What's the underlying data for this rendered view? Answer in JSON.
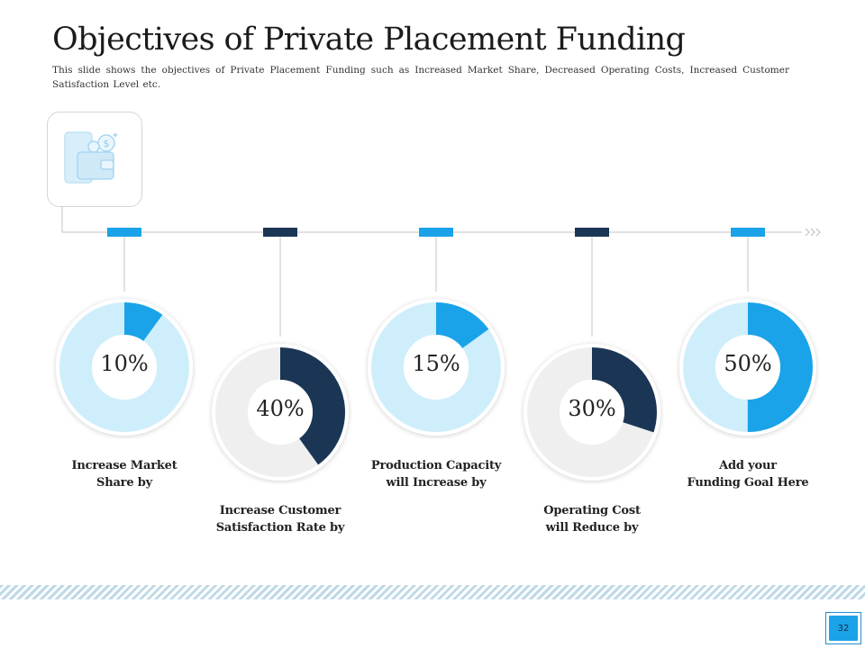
{
  "slide": {
    "title": "Objectives of Private Placement Funding",
    "subtitle": "This slide shows the objectives of Private Placement Funding such as Increased Market Share, Decreased Operating Costs, Increased Customer Satisfaction Level etc.",
    "page_number": "32",
    "icon": "wallet-phone-money-icon"
  },
  "chart_data": {
    "type": "donut",
    "items": [
      {
        "percent_label": "10%",
        "value": 10,
        "label_lines": [
          "Increase Market",
          "Share by"
        ],
        "color": "#1aa3e8",
        "track_color": "#cfeefb",
        "marker_color": "#1aa3e8"
      },
      {
        "percent_label": "40%",
        "value": 40,
        "label_lines": [
          "Increase Customer",
          "Satisfaction Rate by"
        ],
        "color": "#1b3655",
        "track_color": "#efefef",
        "marker_color": "#1b3655"
      },
      {
        "percent_label": "15%",
        "value": 15,
        "label_lines": [
          "Production Capacity",
          "will Increase by"
        ],
        "color": "#1aa3e8",
        "track_color": "#cfeefb",
        "marker_color": "#1aa3e8"
      },
      {
        "percent_label": "30%",
        "value": 30,
        "label_lines": [
          "Operating Cost",
          "will Reduce by"
        ],
        "color": "#1b3655",
        "track_color": "#efefef",
        "marker_color": "#1b3655"
      },
      {
        "percent_label": "50%",
        "value": 50,
        "label_lines": [
          "Add your",
          "Funding Goal Here"
        ],
        "color": "#1aa3e8",
        "track_color": "#cfeefb",
        "marker_color": "#1aa3e8"
      }
    ]
  },
  "colors": {
    "accent": "#1aa3e8",
    "dark": "#1b3655",
    "line": "#cfcfcf"
  }
}
